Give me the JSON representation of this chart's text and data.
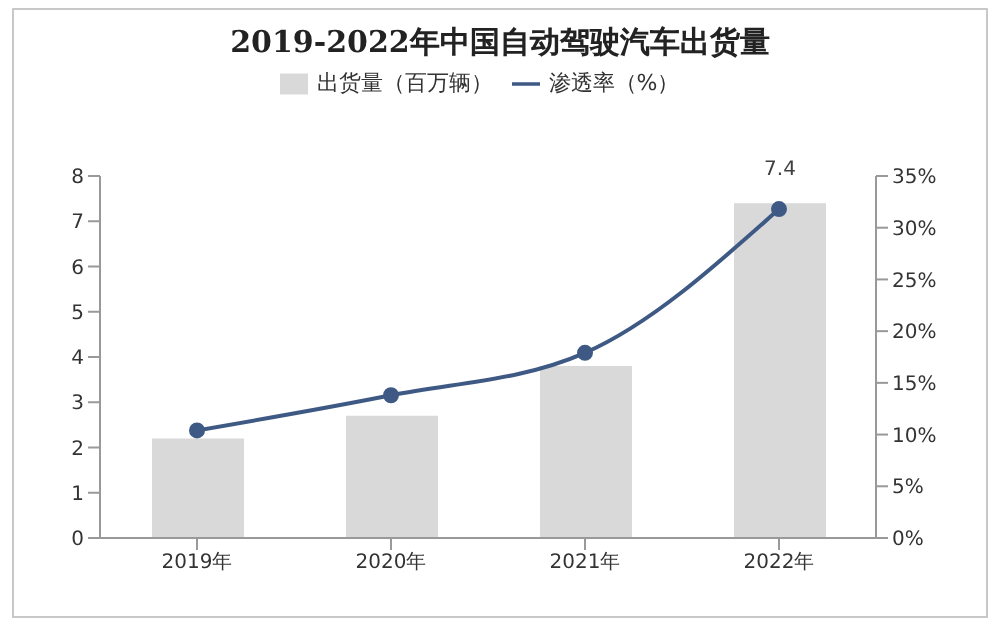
{
  "chart_data": {
    "type": "bar",
    "title": "2019-2022年中国自动驾驶汽车出货量",
    "categories": [
      "2019年",
      "2020年",
      "2021年",
      "2022年"
    ],
    "series": [
      {
        "name": "出货量（百万辆）",
        "color": "#d9d9d9",
        "values": [
          2.2,
          2.7,
          3.8,
          7.4
        ],
        "value_labels": [
          null,
          null,
          null,
          "7.4"
        ]
      },
      {
        "name": "渗透率（%）",
        "type": "line",
        "axis": "y2",
        "color": "#3e5a84",
        "values": [
          10.4,
          13.8,
          17.9,
          31.8
        ]
      }
    ],
    "ylim": [
      0,
      8
    ],
    "yticks": [
      0,
      1,
      2,
      3,
      4,
      5,
      6,
      7,
      8
    ],
    "y2lim": [
      0,
      35
    ],
    "y2ticks": [
      {
        "value": 0,
        "label": "0%"
      },
      {
        "value": 5,
        "label": "5%"
      },
      {
        "value": 10,
        "label": "10%"
      },
      {
        "value": 15,
        "label": "15%"
      },
      {
        "value": 20,
        "label": "20%"
      },
      {
        "value": 25,
        "label": "25%"
      },
      {
        "value": 30,
        "label": "30%"
      },
      {
        "value": 35,
        "label": "35%"
      }
    ],
    "grid": false,
    "legend": "top",
    "marker": "circle",
    "line_style": "solid"
  }
}
